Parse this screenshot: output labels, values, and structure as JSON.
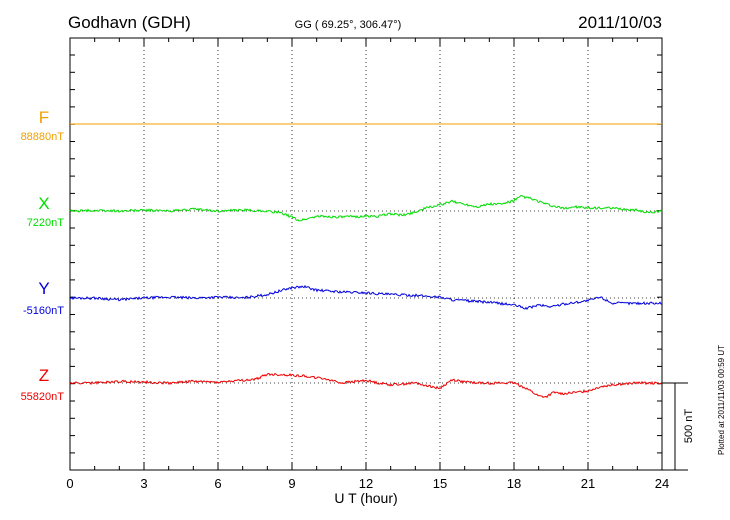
{
  "chart_data": {
    "type": "line",
    "station": "Godhavn (GDH)",
    "coords": "GG ( 69.25°, 306.47°)",
    "date": "2011/10/03",
    "xlabel": "U T (hour)",
    "xlim": [
      0,
      24
    ],
    "xticks": [
      "0",
      "3",
      "6",
      "9",
      "12",
      "15",
      "18",
      "21",
      "24"
    ],
    "grid": true,
    "scale_label": "500 nT",
    "plotted_note": "Plotted at 2011/11/03 00:59 UT",
    "series": [
      {
        "name": "F",
        "baseline_label": "88880nT",
        "color": "#f0a000",
        "x": [
          0,
          24
        ],
        "y": [
          0,
          0
        ]
      },
      {
        "name": "X",
        "baseline_label": "7220nT",
        "color": "#00dd00",
        "x": [
          0,
          1,
          2,
          3,
          4,
          5,
          6,
          7,
          8,
          8.5,
          9,
          9.3,
          9.6,
          10,
          11,
          12,
          12.5,
          13,
          13.5,
          14,
          14.5,
          15,
          15.5,
          16,
          16.5,
          17,
          17.5,
          18,
          18.3,
          18.6,
          19,
          19.5,
          20,
          20.5,
          21,
          21.5,
          22,
          22.5,
          23,
          23.5,
          24
        ],
        "y": [
          0,
          3,
          0,
          5,
          0,
          10,
          0,
          5,
          0,
          -10,
          -35,
          -55,
          -45,
          -30,
          -35,
          -30,
          -30,
          -15,
          -25,
          -5,
          20,
          35,
          55,
          40,
          25,
          40,
          40,
          60,
          85,
          75,
          55,
          30,
          15,
          25,
          15,
          18,
          15,
          10,
          5,
          -10,
          0
        ]
      },
      {
        "name": "Y",
        "baseline_label": "-5160nT",
        "color": "#0000dd",
        "x": [
          0,
          1,
          2,
          3,
          4,
          5,
          6,
          7,
          7.5,
          8,
          8.5,
          9,
          9.5,
          10,
          10.5,
          11,
          12,
          12.5,
          13,
          14,
          14.5,
          15,
          15.5,
          16,
          17,
          18,
          18.5,
          19,
          19.5,
          20,
          20.5,
          21,
          21.5,
          22,
          23,
          24
        ],
        "y": [
          0,
          0,
          -10,
          0,
          5,
          0,
          5,
          0,
          10,
          20,
          40,
          60,
          65,
          45,
          40,
          35,
          30,
          25,
          20,
          15,
          10,
          5,
          -10,
          -15,
          -25,
          -40,
          -60,
          -40,
          -50,
          -35,
          -25,
          -15,
          5,
          -30,
          -30,
          -30
        ]
      },
      {
        "name": "Z",
        "baseline_label": "55820nT",
        "color": "#ee0000",
        "x": [
          0,
          1,
          2,
          3,
          4,
          5,
          6,
          7,
          7.5,
          8,
          9,
          9.5,
          10,
          10.5,
          11,
          12,
          12.5,
          13,
          14,
          14.5,
          15,
          15.5,
          16,
          17,
          18,
          18.5,
          19,
          19.3,
          19.6,
          20,
          20.5,
          21,
          21.5,
          22,
          23,
          24
        ],
        "y": [
          0,
          0,
          10,
          5,
          0,
          10,
          5,
          15,
          20,
          50,
          45,
          40,
          30,
          20,
          0,
          15,
          0,
          -10,
          0,
          -15,
          -30,
          20,
          5,
          0,
          0,
          -30,
          -75,
          -80,
          -55,
          -60,
          -55,
          -45,
          -20,
          -10,
          0,
          0
        ]
      }
    ]
  }
}
